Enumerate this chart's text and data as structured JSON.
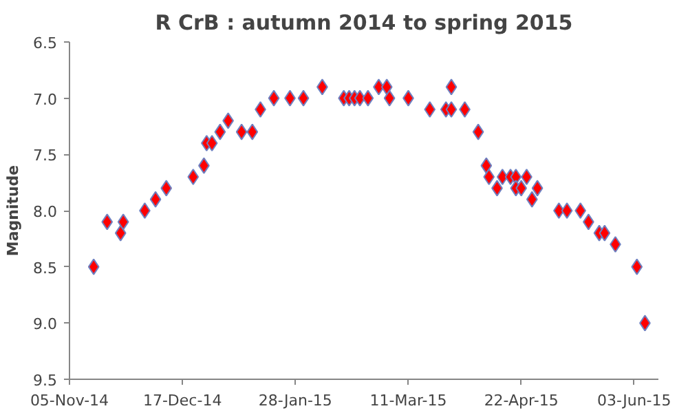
{
  "chart_data": {
    "type": "scatter",
    "title": "R CrB : autumn 2014 to spring 2015",
    "ylabel": "Magnitude",
    "x": [
      "2014-11-14",
      "2014-11-19",
      "2014-11-24",
      "2014-11-25",
      "2014-12-03",
      "2014-12-07",
      "2014-12-11",
      "2014-12-21",
      "2014-12-25",
      "2014-12-26",
      "2014-12-28",
      "2014-12-31",
      "2015-01-03",
      "2015-01-08",
      "2015-01-12",
      "2015-01-15",
      "2015-01-20",
      "2015-01-26",
      "2015-01-31",
      "2015-02-07",
      "2015-02-15",
      "2015-02-17",
      "2015-02-19",
      "2015-02-21",
      "2015-02-24",
      "2015-02-28",
      "2015-03-03",
      "2015-03-04",
      "2015-03-11",
      "2015-03-19",
      "2015-03-25",
      "2015-03-27",
      "2015-03-27",
      "2015-04-01",
      "2015-04-06",
      "2015-04-09",
      "2015-04-10",
      "2015-04-13",
      "2015-04-15",
      "2015-04-18",
      "2015-04-20",
      "2015-04-20",
      "2015-04-22",
      "2015-04-24",
      "2015-04-26",
      "2015-04-28",
      "2015-05-06",
      "2015-05-09",
      "2015-05-14",
      "2015-05-17",
      "2015-05-21",
      "2015-05-23",
      "2015-05-27",
      "2015-06-04",
      "2015-06-07"
    ],
    "series": [
      {
        "color": "#ff0000",
        "values": [
          8.5,
          8.1,
          8.2,
          8.1,
          8.0,
          7.9,
          7.8,
          7.7,
          7.6,
          7.4,
          7.4,
          7.3,
          7.2,
          7.3,
          7.3,
          7.1,
          7.0,
          7.0,
          7.0,
          6.9,
          7.0,
          7.0,
          7.0,
          7.0,
          7.0,
          6.9,
          6.9,
          7.0,
          7.0,
          7.1,
          7.1,
          6.9,
          7.1,
          7.1,
          7.3,
          7.6,
          7.7,
          7.8,
          7.7,
          7.7,
          7.7,
          7.8,
          7.8,
          7.7,
          7.9,
          7.8,
          8.0,
          8.0,
          8.0,
          8.1,
          8.2,
          8.2,
          8.3,
          8.5,
          9.0
        ]
      }
    ],
    "xlim": [
      "2014-11-05",
      "2015-06-12"
    ],
    "xticks": [
      {
        "value": "2014-11-05",
        "label": "05-Nov-14"
      },
      {
        "value": "2014-12-17",
        "label": "17-Dec-14"
      },
      {
        "value": "2015-01-28",
        "label": "28-Jan-15"
      },
      {
        "value": "2015-03-11",
        "label": "11-Mar-15"
      },
      {
        "value": "2015-04-22",
        "label": "22-Apr-15"
      },
      {
        "value": "2015-06-03",
        "label": "03-Jun-15"
      }
    ],
    "ylim": [
      9.5,
      6.5
    ],
    "yticks": [
      {
        "value": 6.5,
        "label": "6.5"
      },
      {
        "value": 7,
        "label": "7.0"
      },
      {
        "value": 7.5,
        "label": "7.5"
      },
      {
        "value": 8,
        "label": "8.0"
      },
      {
        "value": 8.5,
        "label": "8.5"
      },
      {
        "value": 9,
        "label": "9.0"
      },
      {
        "value": 9.5,
        "label": "9.5"
      }
    ],
    "marker": "diamond",
    "grid": false
  }
}
